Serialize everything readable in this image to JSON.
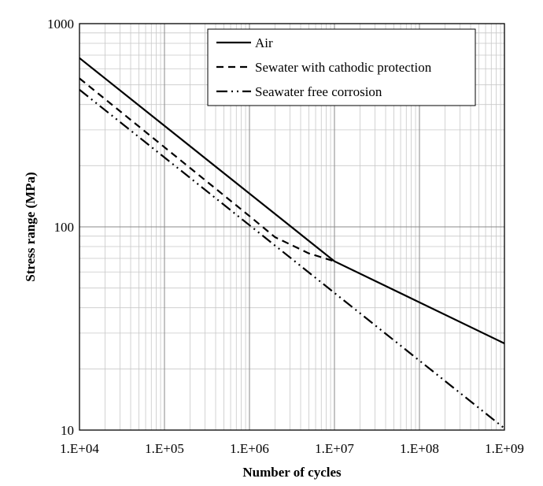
{
  "chart_data": {
    "type": "line",
    "title": "",
    "xlabel": "Number of cycles",
    "ylabel": "Stress range (MPa)",
    "x_scale": "log",
    "y_scale": "log",
    "xlim": [
      10000,
      1000000000
    ],
    "ylim": [
      10,
      1000
    ],
    "x_ticks": [
      "1.E+04",
      "1.E+05",
      "1.E+06",
      "1.E+07",
      "1.E+08",
      "1.E+09"
    ],
    "y_ticks": [
      "10",
      "100",
      "1000"
    ],
    "grid": true,
    "legend_position": "top-right",
    "series": [
      {
        "name": "Air",
        "line_style": "solid",
        "color": "#000000",
        "points": [
          [
            10000,
            677
          ],
          [
            10000000,
            67.7
          ],
          [
            1000000000,
            26.7
          ]
        ]
      },
      {
        "name": "Sewater with cathodic protection",
        "line_style": "dashed",
        "color": "#000000",
        "points": [
          [
            10000,
            538
          ],
          [
            1000000,
            113
          ],
          [
            2000000,
            89
          ],
          [
            5000000,
            74
          ],
          [
            10000000,
            67.7
          ]
        ]
      },
      {
        "name": "Seawater free corrosion",
        "line_style": "dash-dot-dot",
        "color": "#000000",
        "points": [
          [
            10000,
            473
          ],
          [
            1000000000,
            10.2
          ]
        ]
      }
    ]
  }
}
